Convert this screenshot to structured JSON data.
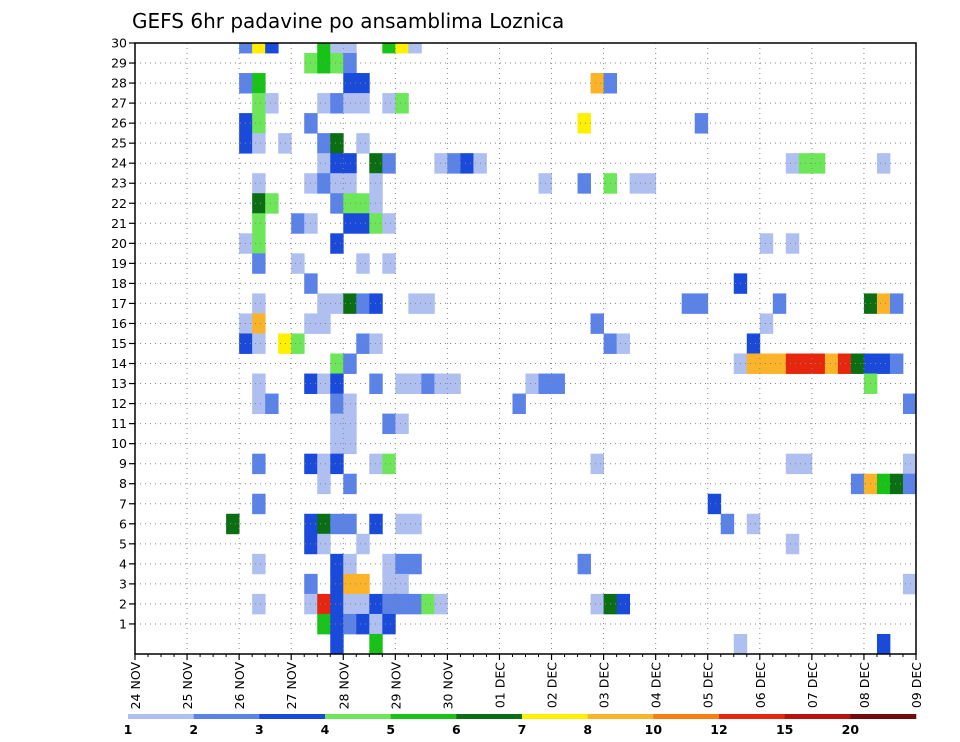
{
  "chart_data": {
    "type": "heatmap",
    "title": "GEFS 6hr padavine po ansamblima Loznica",
    "xlabel": "",
    "ylabel": "",
    "x_ticks": [
      "24 NOV",
      "25 NOV",
      "26 NOV",
      "27 NOV",
      "28 NOV",
      "29 NOV",
      "30 NOV",
      "01 DEC",
      "02 DEC",
      "03 DEC",
      "04 DEC",
      "05 DEC",
      "06 DEC",
      "07 DEC",
      "08 DEC",
      "09 DEC"
    ],
    "y_ticks": [
      "1",
      "2",
      "3",
      "4",
      "5",
      "6",
      "7",
      "8",
      "9",
      "10",
      "11",
      "12",
      "13",
      "14",
      "15",
      "16",
      "17",
      "18",
      "19",
      "20",
      "21",
      "22",
      "23",
      "24",
      "25",
      "26",
      "27",
      "28",
      "29",
      "30"
    ],
    "x_range": [
      0,
      60
    ],
    "y_range": [
      0,
      30
    ],
    "grid": true,
    "color_scale": {
      "labels": [
        "1",
        "2",
        "3",
        "4",
        "5",
        "6",
        "7",
        "8",
        "10",
        "12",
        "15",
        "20"
      ],
      "colors": [
        "#aebff0",
        "#5b82e6",
        "#1a4ad9",
        "#6ee65a",
        "#19c219",
        "#0b6e12",
        "#fff000",
        "#fbb42a",
        "#fa7d10",
        "#e6260d",
        "#b9120d",
        "#750a0a"
      ]
    },
    "cells": [
      [
        8,
        30,
        2
      ],
      [
        9,
        30,
        7
      ],
      [
        10,
        30,
        3
      ],
      [
        14,
        30,
        5
      ],
      [
        15,
        30,
        1
      ],
      [
        16,
        30,
        1
      ],
      [
        19,
        30,
        5
      ],
      [
        20,
        30,
        7
      ],
      [
        21,
        30,
        1
      ],
      [
        13,
        29,
        4
      ],
      [
        14,
        29,
        5
      ],
      [
        15,
        29,
        4
      ],
      [
        16,
        29,
        2
      ],
      [
        8,
        28,
        2
      ],
      [
        9,
        28,
        5
      ],
      [
        16,
        28,
        3
      ],
      [
        17,
        28,
        3
      ],
      [
        35,
        28,
        8
      ],
      [
        36,
        28,
        2
      ],
      [
        9,
        27,
        4
      ],
      [
        10,
        27,
        1
      ],
      [
        14,
        27,
        1
      ],
      [
        15,
        27,
        2
      ],
      [
        16,
        27,
        1
      ],
      [
        17,
        27,
        1
      ],
      [
        19,
        27,
        1
      ],
      [
        20,
        27,
        4
      ],
      [
        8,
        26,
        3
      ],
      [
        9,
        26,
        4
      ],
      [
        13,
        26,
        2
      ],
      [
        34,
        26,
        7
      ],
      [
        43,
        26,
        2
      ],
      [
        8,
        25,
        3
      ],
      [
        9,
        25,
        1
      ],
      [
        11,
        25,
        1
      ],
      [
        14,
        25,
        2
      ],
      [
        15,
        25,
        6
      ],
      [
        17,
        25,
        1
      ],
      [
        14,
        24,
        1
      ],
      [
        15,
        24,
        3
      ],
      [
        16,
        24,
        3
      ],
      [
        18,
        24,
        6
      ],
      [
        19,
        24,
        2
      ],
      [
        23,
        24,
        1
      ],
      [
        24,
        24,
        2
      ],
      [
        25,
        24,
        3
      ],
      [
        26,
        24,
        1
      ],
      [
        50,
        24,
        1
      ],
      [
        51,
        24,
        4
      ],
      [
        52,
        24,
        4
      ],
      [
        57,
        24,
        1
      ],
      [
        9,
        23,
        1
      ],
      [
        13,
        23,
        1
      ],
      [
        14,
        23,
        2
      ],
      [
        15,
        23,
        1
      ],
      [
        16,
        23,
        1
      ],
      [
        18,
        23,
        1
      ],
      [
        31,
        23,
        1
      ],
      [
        34,
        23,
        2
      ],
      [
        36,
        23,
        4
      ],
      [
        38,
        23,
        1
      ],
      [
        39,
        23,
        1
      ],
      [
        9,
        22,
        6
      ],
      [
        10,
        22,
        4
      ],
      [
        15,
        22,
        2
      ],
      [
        16,
        22,
        4
      ],
      [
        17,
        22,
        4
      ],
      [
        18,
        22,
        1
      ],
      [
        9,
        21,
        4
      ],
      [
        12,
        21,
        2
      ],
      [
        13,
        21,
        1
      ],
      [
        16,
        21,
        3
      ],
      [
        17,
        21,
        3
      ],
      [
        18,
        21,
        4
      ],
      [
        19,
        21,
        1
      ],
      [
        8,
        20,
        1
      ],
      [
        9,
        20,
        4
      ],
      [
        15,
        20,
        3
      ],
      [
        48,
        20,
        1
      ],
      [
        50,
        20,
        1
      ],
      [
        9,
        19,
        2
      ],
      [
        12,
        19,
        1
      ],
      [
        17,
        19,
        1
      ],
      [
        19,
        19,
        1
      ],
      [
        13,
        18,
        2
      ],
      [
        46,
        18,
        3
      ],
      [
        9,
        17,
        1
      ],
      [
        14,
        17,
        1
      ],
      [
        15,
        17,
        1
      ],
      [
        16,
        17,
        6
      ],
      [
        17,
        17,
        2
      ],
      [
        18,
        17,
        3
      ],
      [
        21,
        17,
        1
      ],
      [
        22,
        17,
        1
      ],
      [
        42,
        17,
        2
      ],
      [
        43,
        17,
        2
      ],
      [
        49,
        17,
        2
      ],
      [
        56,
        17,
        6
      ],
      [
        57,
        17,
        8
      ],
      [
        58,
        17,
        2
      ],
      [
        8,
        16,
        1
      ],
      [
        9,
        16,
        8
      ],
      [
        13,
        16,
        1
      ],
      [
        14,
        16,
        1
      ],
      [
        35,
        16,
        2
      ],
      [
        48,
        16,
        1
      ],
      [
        8,
        15,
        3
      ],
      [
        9,
        15,
        1
      ],
      [
        11,
        15,
        7
      ],
      [
        12,
        15,
        4
      ],
      [
        17,
        15,
        2
      ],
      [
        18,
        15,
        1
      ],
      [
        36,
        15,
        2
      ],
      [
        37,
        15,
        1
      ],
      [
        47,
        15,
        3
      ],
      [
        15,
        14,
        4
      ],
      [
        16,
        14,
        2
      ],
      [
        46,
        14,
        1
      ],
      [
        47,
        14,
        8
      ],
      [
        48,
        14,
        8
      ],
      [
        49,
        14,
        8
      ],
      [
        50,
        14,
        10
      ],
      [
        51,
        14,
        10
      ],
      [
        52,
        14,
        10
      ],
      [
        53,
        14,
        8
      ],
      [
        54,
        14,
        10
      ],
      [
        55,
        14,
        6
      ],
      [
        56,
        14,
        3
      ],
      [
        57,
        14,
        3
      ],
      [
        58,
        14,
        2
      ],
      [
        9,
        13,
        1
      ],
      [
        13,
        13,
        3
      ],
      [
        14,
        13,
        1
      ],
      [
        15,
        13,
        3
      ],
      [
        18,
        13,
        2
      ],
      [
        20,
        13,
        1
      ],
      [
        21,
        13,
        1
      ],
      [
        22,
        13,
        2
      ],
      [
        23,
        13,
        1
      ],
      [
        24,
        13,
        1
      ],
      [
        30,
        13,
        1
      ],
      [
        31,
        13,
        2
      ],
      [
        32,
        13,
        2
      ],
      [
        56,
        13,
        4
      ],
      [
        9,
        12,
        1
      ],
      [
        10,
        12,
        2
      ],
      [
        15,
        12,
        2
      ],
      [
        16,
        12,
        1
      ],
      [
        29,
        12,
        2
      ],
      [
        59,
        12,
        2
      ],
      [
        15,
        11,
        1
      ],
      [
        16,
        11,
        1
      ],
      [
        19,
        11,
        2
      ],
      [
        20,
        11,
        1
      ],
      [
        15,
        10,
        1
      ],
      [
        16,
        10,
        1
      ],
      [
        9,
        9,
        2
      ],
      [
        13,
        9,
        3
      ],
      [
        14,
        9,
        1
      ],
      [
        15,
        9,
        3
      ],
      [
        18,
        9,
        1
      ],
      [
        19,
        9,
        4
      ],
      [
        35,
        9,
        1
      ],
      [
        50,
        9,
        1
      ],
      [
        51,
        9,
        1
      ],
      [
        59,
        9,
        1
      ],
      [
        14,
        8,
        1
      ],
      [
        16,
        8,
        2
      ],
      [
        55,
        8,
        2
      ],
      [
        56,
        8,
        8
      ],
      [
        57,
        8,
        5
      ],
      [
        58,
        8,
        6
      ],
      [
        59,
        8,
        2
      ],
      [
        9,
        7,
        2
      ],
      [
        44,
        7,
        3
      ],
      [
        7,
        6,
        6
      ],
      [
        13,
        6,
        3
      ],
      [
        14,
        6,
        6
      ],
      [
        15,
        6,
        2
      ],
      [
        16,
        6,
        2
      ],
      [
        18,
        6,
        3
      ],
      [
        20,
        6,
        1
      ],
      [
        21,
        6,
        1
      ],
      [
        45,
        6,
        2
      ],
      [
        47,
        6,
        1
      ],
      [
        13,
        5,
        3
      ],
      [
        14,
        5,
        1
      ],
      [
        17,
        5,
        1
      ],
      [
        50,
        5,
        1
      ],
      [
        9,
        4,
        1
      ],
      [
        15,
        4,
        3
      ],
      [
        16,
        4,
        1
      ],
      [
        19,
        4,
        1
      ],
      [
        20,
        4,
        2
      ],
      [
        21,
        4,
        2
      ],
      [
        34,
        4,
        2
      ],
      [
        13,
        3,
        2
      ],
      [
        15,
        3,
        3
      ],
      [
        16,
        3,
        8
      ],
      [
        17,
        3,
        8
      ],
      [
        19,
        3,
        1
      ],
      [
        20,
        3,
        1
      ],
      [
        59,
        3,
        1
      ],
      [
        9,
        2,
        1
      ],
      [
        13,
        2,
        1
      ],
      [
        14,
        2,
        10
      ],
      [
        15,
        2,
        3
      ],
      [
        16,
        2,
        1
      ],
      [
        17,
        2,
        1
      ],
      [
        18,
        2,
        3
      ],
      [
        19,
        2,
        2
      ],
      [
        20,
        2,
        2
      ],
      [
        21,
        2,
        2
      ],
      [
        22,
        2,
        4
      ],
      [
        23,
        2,
        1
      ],
      [
        35,
        2,
        1
      ],
      [
        36,
        2,
        6
      ],
      [
        37,
        2,
        3
      ],
      [
        14,
        1,
        5
      ],
      [
        15,
        1,
        3
      ],
      [
        16,
        1,
        2
      ],
      [
        17,
        1,
        3
      ],
      [
        18,
        1,
        1
      ],
      [
        19,
        1,
        3
      ],
      [
        15,
        0,
        3
      ],
      [
        18,
        0,
        5
      ],
      [
        46,
        0,
        1
      ],
      [
        57,
        0,
        3
      ]
    ]
  }
}
